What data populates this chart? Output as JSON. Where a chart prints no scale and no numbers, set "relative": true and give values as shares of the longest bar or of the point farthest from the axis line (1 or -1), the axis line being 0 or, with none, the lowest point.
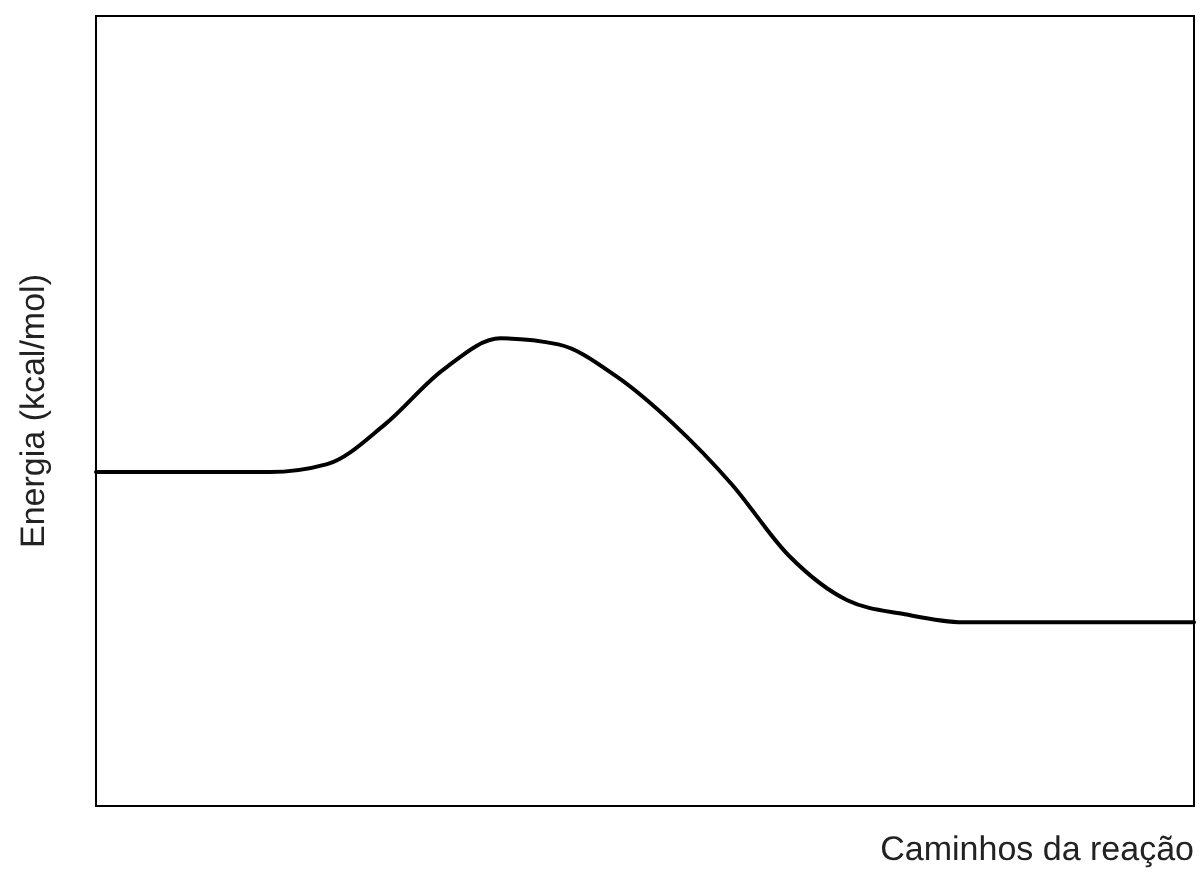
{
  "chart_data": {
    "type": "line",
    "relative": true,
    "xlabel": "Caminhos da reação",
    "ylabel": "Energia (kcal/mol)",
    "categories": [
      null,
      null,
      null,
      null,
      null,
      null,
      null,
      null,
      null,
      null,
      null,
      null,
      null,
      null,
      null,
      null,
      null,
      null,
      null,
      null
    ],
    "series": [
      {
        "color": "#000000",
        "values": [
          0.714,
          0.714,
          0.714,
          0.714,
          0.731,
          0.816,
          0.932,
          1.0,
          0.987,
          0.919,
          0.816,
          0.688,
          0.534,
          0.44,
          0.41,
          0.393,
          0.393,
          0.393,
          0.393,
          0.393
        ]
      }
    ],
    "marker": "none",
    "line_style": "solid"
  }
}
